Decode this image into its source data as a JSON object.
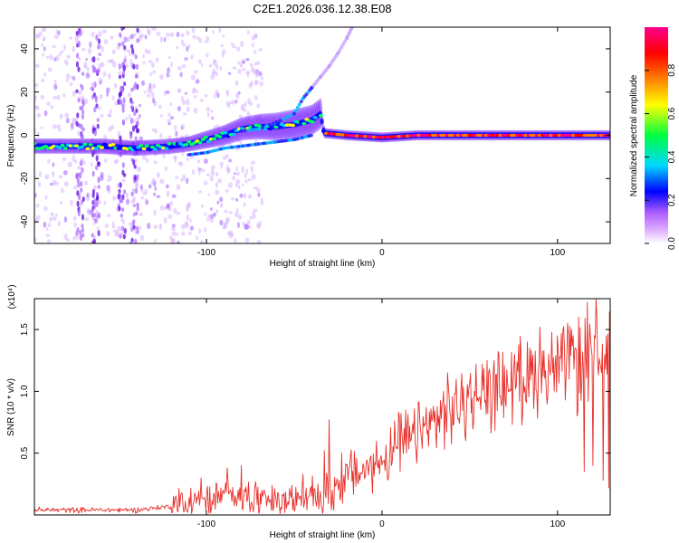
{
  "title": "C2E1.2026.036.12.38.E08",
  "colors": {
    "snr_line": "#e8302a",
    "axis": "#000000",
    "background": "#ffffff"
  },
  "chart_data": [
    {
      "type": "heatmap",
      "xlabel": "Height of straight line (km)",
      "ylabel": "Frequency (Hz)",
      "xlim": [
        -198,
        130
      ],
      "ylim": [
        -50,
        50
      ],
      "x_ticks": [
        -100,
        0,
        100
      ],
      "y_ticks": [
        -40,
        -20,
        0,
        20,
        40
      ],
      "colorbar": {
        "label": "Normalized spectral amplitude",
        "range": [
          0,
          1
        ],
        "ticks": [
          0.0,
          0.2,
          0.4,
          0.6,
          0.8
        ],
        "tick_labels": [
          "0.0",
          "0.2",
          "0.4",
          "0.6",
          "0.8"
        ],
        "colormap": [
          "#ffffff",
          "#c060ff",
          "#0000ff",
          "#00e0ff",
          "#00ff40",
          "#ffff00",
          "#ff8000",
          "#ff0000",
          "#ff0080"
        ]
      },
      "ridge": {
        "description_points": [
          [
            -198,
            -5
          ],
          [
            -160,
            -5
          ],
          [
            -140,
            -6
          ],
          [
            -120,
            -5
          ],
          [
            -110,
            -4
          ],
          [
            -100,
            -2
          ],
          [
            -90,
            0
          ],
          [
            -80,
            3
          ],
          [
            -70,
            4
          ],
          [
            -60,
            4
          ],
          [
            -50,
            5
          ],
          [
            -40,
            7
          ],
          [
            -35,
            10
          ],
          [
            -33,
            1
          ],
          [
            -20,
            0
          ],
          [
            0,
            -1
          ],
          [
            20,
            0
          ],
          [
            60,
            0
          ],
          [
            100,
            0
          ],
          [
            130,
            0
          ]
        ],
        "upper_branch": [
          [
            -80,
            2
          ],
          [
            -70,
            3
          ],
          [
            -60,
            6
          ],
          [
            -50,
            10
          ],
          [
            -45,
            17
          ],
          [
            -40,
            22
          ],
          [
            -35,
            27
          ],
          [
            -30,
            32
          ],
          [
            -25,
            38
          ],
          [
            -20,
            45
          ],
          [
            -17,
            50
          ]
        ],
        "lower_branch": [
          [
            -110,
            -9
          ],
          [
            -100,
            -8
          ],
          [
            -90,
            -6
          ],
          [
            -80,
            -5
          ],
          [
            -70,
            -4
          ],
          [
            -60,
            -3
          ],
          [
            -50,
            -2
          ],
          [
            -40,
            0
          ]
        ]
      },
      "noise_columns": [
        -172,
        -163,
        -148,
        -141
      ]
    },
    {
      "type": "line",
      "xlabel": "Height of straight line (km)",
      "ylabel": "SNR (10 * v/v)",
      "scale_label": "(x10⁴)",
      "xlim": [
        -198,
        130
      ],
      "ylim": [
        0,
        1.75
      ],
      "x_ticks": [
        -100,
        0,
        100
      ],
      "y_ticks": [
        0.5,
        1.0,
        1.5
      ],
      "y_tick_labels": [
        "0.5",
        "1.0",
        "1.5"
      ],
      "series": [
        {
          "trend": [
            [
              -198,
              0.04
            ],
            [
              -180,
              0.04
            ],
            [
              -160,
              0.04
            ],
            [
              -140,
              0.04
            ],
            [
              -120,
              0.07
            ],
            [
              -110,
              0.12
            ],
            [
              -100,
              0.12
            ],
            [
              -90,
              0.15
            ],
            [
              -80,
              0.17
            ],
            [
              -70,
              0.12
            ],
            [
              -60,
              0.1
            ],
            [
              -50,
              0.12
            ],
            [
              -40,
              0.15
            ],
            [
              -30,
              0.18
            ],
            [
              -25,
              0.25
            ],
            [
              -20,
              0.33
            ],
            [
              -10,
              0.35
            ],
            [
              0,
              0.45
            ],
            [
              10,
              0.55
            ],
            [
              20,
              0.65
            ],
            [
              30,
              0.75
            ],
            [
              40,
              0.85
            ],
            [
              50,
              0.93
            ],
            [
              60,
              1.0
            ],
            [
              70,
              1.05
            ],
            [
              80,
              1.1
            ],
            [
              90,
              1.15
            ],
            [
              100,
              1.18
            ],
            [
              110,
              1.2
            ],
            [
              120,
              1.22
            ],
            [
              130,
              1.22
            ]
          ],
          "spikes": [
            [
              -103,
              0.3
            ],
            [
              -88,
              0.38
            ],
            [
              -80,
              0.4
            ],
            [
              -45,
              0.33
            ],
            [
              -33,
              0.52
            ],
            [
              -30,
              0.77
            ],
            [
              -23,
              0.5
            ],
            [
              10,
              0.8
            ],
            [
              35,
              1.0
            ],
            [
              60,
              1.25
            ],
            [
              75,
              1.2
            ],
            [
              83,
              1.4
            ],
            [
              90,
              1.52
            ],
            [
              95,
              1.3
            ],
            [
              100,
              1.45
            ],
            [
              108,
              1.5
            ],
            [
              112,
              1.6
            ],
            [
              117,
              1.72
            ],
            [
              119,
              1.42
            ],
            [
              122,
              1.75
            ],
            [
              126,
              1.6
            ],
            [
              128,
              1.45
            ]
          ],
          "dips": [
            [
              -36,
              0.05
            ],
            [
              -34,
              0.05
            ],
            [
              115,
              0.35
            ],
            [
              120,
              0.4
            ],
            [
              126,
              0.28
            ],
            [
              129,
              0.22
            ]
          ]
        }
      ]
    }
  ]
}
